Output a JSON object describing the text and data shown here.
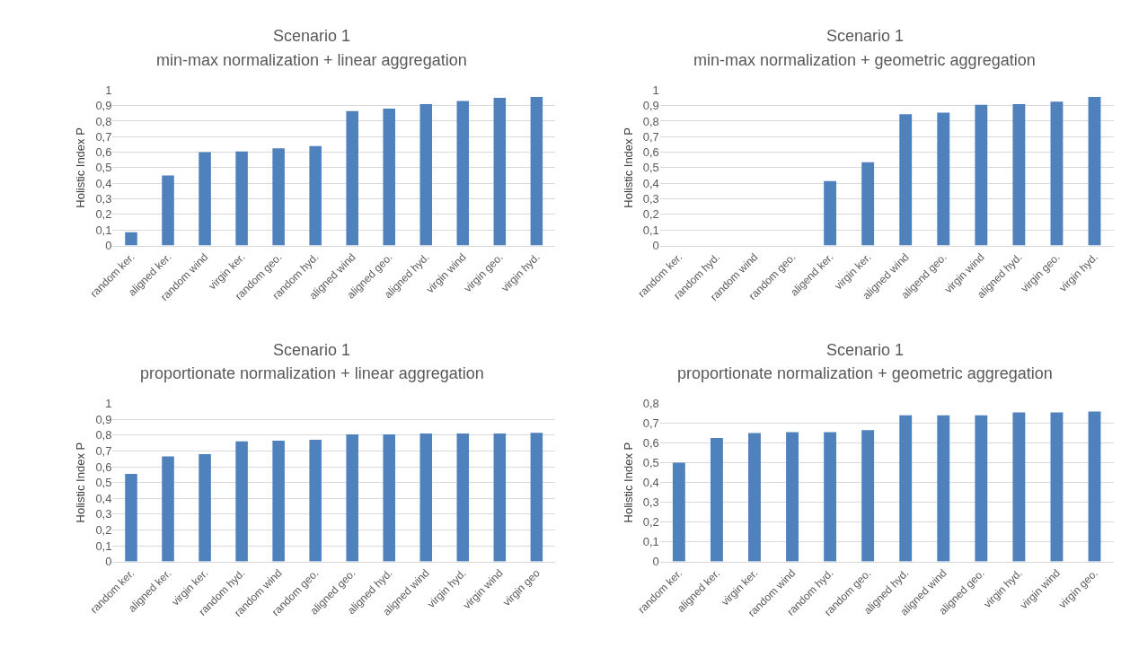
{
  "chart_data": [
    {
      "type": "bar",
      "title": "Scenario 1",
      "subtitle": "min-max normalization + linear aggregation",
      "ylabel": "Holistic Index P",
      "color": "#4f81bd",
      "grid": "y",
      "categories": [
        "random ker.",
        "aligned ker.",
        "random wind",
        "virgin ker.",
        "random geo.",
        "random hyd.",
        "aligned wind",
        "aligned geo.",
        "aligned hyd.",
        "virgin wind",
        "virgin geo.",
        "virgin hyd."
      ],
      "values": [
        0.085,
        0.45,
        0.6,
        0.605,
        0.625,
        0.64,
        0.865,
        0.88,
        0.91,
        0.93,
        0.95,
        0.955
      ],
      "ylim": [
        0,
        1
      ],
      "yticks": [
        0,
        {
          "value": 0.1,
          "label": "0,1"
        },
        {
          "value": 0.2,
          "label": "0,2"
        },
        {
          "value": 0.3,
          "label": "0,3"
        },
        {
          "value": 0.4,
          "label": "0,4"
        },
        {
          "value": 0.5,
          "label": "0,5"
        },
        {
          "value": 0.6,
          "label": "0,6"
        },
        {
          "value": 0.7,
          "label": "0,7"
        },
        {
          "value": 0.8,
          "label": "0,8"
        },
        {
          "value": 0.9,
          "label": "0,9"
        },
        1
      ]
    },
    {
      "type": "bar",
      "title": "Scenario 1",
      "subtitle": "min-max normalization + geometric aggregation",
      "ylabel": "Holistic Index P",
      "color": "#4f81bd",
      "grid": "y",
      "categories": [
        "random ker.",
        "random hyd.",
        "random wind",
        "random geo.",
        "aligend ker.",
        "virgin ker.",
        "aligned wind",
        "aligend geo.",
        "virgin wind",
        "aligned hyd.",
        "virgin geo.",
        "virgin hyd."
      ],
      "values": [
        0,
        0,
        0,
        0,
        0.415,
        0.535,
        0.845,
        0.855,
        0.905,
        0.91,
        0.925,
        0.955
      ],
      "ylim": [
        0,
        1
      ],
      "yticks": [
        0,
        {
          "value": 0.1,
          "label": "0,1"
        },
        {
          "value": 0.2,
          "label": "0,2"
        },
        {
          "value": 0.3,
          "label": "0,3"
        },
        {
          "value": 0.4,
          "label": "0,4"
        },
        {
          "value": 0.5,
          "label": "0,5"
        },
        {
          "value": 0.6,
          "label": "0,6"
        },
        {
          "value": 0.7,
          "label": "0,7"
        },
        {
          "value": 0.8,
          "label": "0,8"
        },
        {
          "value": 0.9,
          "label": "0,9"
        },
        1
      ]
    },
    {
      "type": "bar",
      "title": "Scenario 1",
      "subtitle": "proportionate normalization + linear aggregation",
      "ylabel": "Holistic Index P",
      "color": "#4f81bd",
      "grid": "y",
      "categories": [
        "random ker.",
        "aligned ker.",
        "virgin ker.",
        "random hyd.",
        "random wind",
        "random geo.",
        "aligned geo.",
        "aligned hyd.",
        "aligned wind",
        "virgin hyd.",
        "virgin wind",
        "virgin geo"
      ],
      "values": [
        0.555,
        0.665,
        0.68,
        0.76,
        0.765,
        0.77,
        0.805,
        0.805,
        0.81,
        0.81,
        0.81,
        0.815
      ],
      "ylim": [
        0,
        1
      ],
      "yticks": [
        0,
        {
          "value": 0.1,
          "label": "0,1"
        },
        {
          "value": 0.2,
          "label": "0,2"
        },
        {
          "value": 0.3,
          "label": "0,3"
        },
        {
          "value": 0.4,
          "label": "0,4"
        },
        {
          "value": 0.5,
          "label": "0,5"
        },
        {
          "value": 0.6,
          "label": "0,6"
        },
        {
          "value": 0.7,
          "label": "0,7"
        },
        {
          "value": 0.8,
          "label": "0,8"
        },
        {
          "value": 0.9,
          "label": "0,9"
        },
        1
      ]
    },
    {
      "type": "bar",
      "title": "Scenario 1",
      "subtitle": "proportionate normalization + geometric aggregation",
      "ylabel": "Holistic Index P",
      "color": "#4f81bd",
      "grid": "y",
      "categories": [
        "random ker.",
        "aligned ker.",
        "virgin ker.",
        "random wind",
        "random hyd.",
        "random geo.",
        "aligned hyd.",
        "aligned wind",
        "aligned geo.",
        "virgin hyd.",
        "virgin wind",
        "virgin geo."
      ],
      "values": [
        0.5,
        0.625,
        0.65,
        0.655,
        0.655,
        0.665,
        0.74,
        0.74,
        0.74,
        0.755,
        0.755,
        0.76
      ],
      "ylim": [
        0,
        0.8
      ],
      "yticks": [
        0,
        {
          "value": 0.1,
          "label": "0,1"
        },
        {
          "value": 0.2,
          "label": "0,2"
        },
        {
          "value": 0.3,
          "label": "0,3"
        },
        {
          "value": 0.4,
          "label": "0,4"
        },
        {
          "value": 0.5,
          "label": "0,5"
        },
        {
          "value": 0.6,
          "label": "0,6"
        },
        {
          "value": 0.7,
          "label": "0,7"
        },
        {
          "value": 0.8,
          "label": "0,8"
        }
      ]
    }
  ]
}
